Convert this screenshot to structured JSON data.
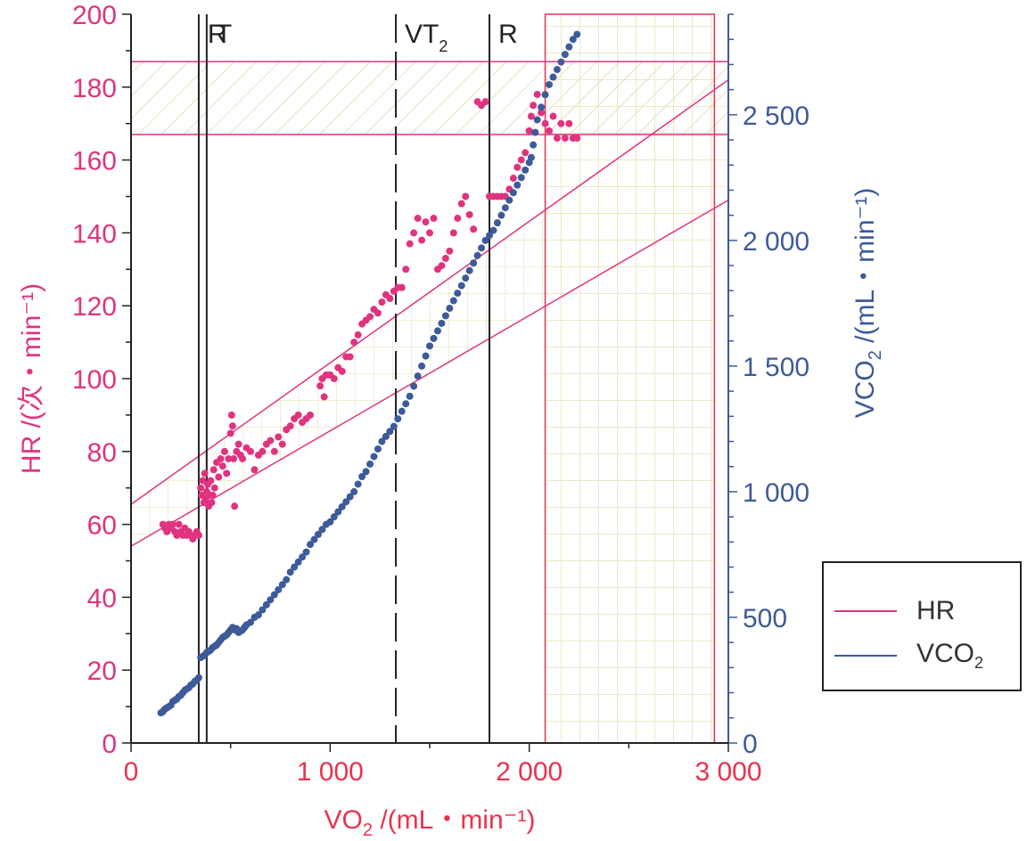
{
  "chart_data": {
    "type": "scatter",
    "xlabel": "VO",
    "xlabel_sub": "2",
    "xlabel_suffix": " /(mL・min⁻¹)",
    "ylabel_left": "HR /(次・min⁻¹)",
    "ylabel_right": "VCO",
    "ylabel_right_sub": "2",
    "ylabel_right_suffix": " /(mL・min⁻¹)",
    "xlim": [
      0,
      3000
    ],
    "ylim_left": [
      0,
      200
    ],
    "ylim_right": [
      0,
      2900
    ],
    "x_ticks": [
      "0",
      "1 000",
      "2 000",
      "3 000"
    ],
    "y_left_ticks": [
      "0",
      "20",
      "40",
      "60",
      "80",
      "100",
      "120",
      "140",
      "160",
      "180",
      "200"
    ],
    "y_right_ticks": [
      "0",
      "500",
      "1 000",
      "1 500",
      "2 000",
      "2 500"
    ],
    "threshold_lines": [
      {
        "label": "R",
        "sub": "",
        "x": 340,
        "style": "solid"
      },
      {
        "label": "T",
        "sub": "",
        "x": 380,
        "style": "solid"
      },
      {
        "label": "VT",
        "sub": "2",
        "x": 1330,
        "style": "dashed"
      },
      {
        "label": "R",
        "sub": "",
        "x": 1800,
        "style": "solid"
      }
    ],
    "hr_band": {
      "y_low": 167,
      "y_high": 187
    },
    "vo2_band": {
      "x_low": 2080,
      "x_high": 2930
    },
    "hr_regression_lines": [
      {
        "p1": [
          0,
          65.5
        ],
        "p2": [
          3000,
          182
        ]
      },
      {
        "p1": [
          0,
          54
        ],
        "p2": [
          3000,
          149
        ]
      }
    ],
    "series": [
      {
        "name": "HR",
        "color": "#e0337f",
        "axis": "left",
        "points": [
          [
            160,
            60
          ],
          [
            170,
            59
          ],
          [
            180,
            58
          ],
          [
            190,
            60
          ],
          [
            200,
            59
          ],
          [
            210,
            60
          ],
          [
            220,
            58
          ],
          [
            230,
            57
          ],
          [
            240,
            60
          ],
          [
            250,
            58
          ],
          [
            260,
            57
          ],
          [
            270,
            59
          ],
          [
            280,
            57
          ],
          [
            290,
            58
          ],
          [
            300,
            57
          ],
          [
            310,
            56
          ],
          [
            320,
            57
          ],
          [
            330,
            58
          ],
          [
            340,
            57
          ],
          [
            350,
            70
          ],
          [
            355,
            68
          ],
          [
            360,
            72
          ],
          [
            365,
            66
          ],
          [
            370,
            74
          ],
          [
            375,
            67
          ],
          [
            380,
            69
          ],
          [
            385,
            71
          ],
          [
            390,
            65
          ],
          [
            395,
            68
          ],
          [
            400,
            72
          ],
          [
            405,
            66
          ],
          [
            410,
            68
          ],
          [
            415,
            75
          ],
          [
            420,
            70
          ],
          [
            430,
            77
          ],
          [
            440,
            73
          ],
          [
            450,
            78
          ],
          [
            460,
            76
          ],
          [
            470,
            80
          ],
          [
            480,
            74
          ],
          [
            490,
            78
          ],
          [
            500,
            85
          ],
          [
            505,
            90
          ],
          [
            510,
            87
          ],
          [
            515,
            78
          ],
          [
            520,
            65
          ],
          [
            530,
            80
          ],
          [
            540,
            82
          ],
          [
            550,
            79
          ],
          [
            560,
            78
          ],
          [
            580,
            81
          ],
          [
            600,
            80
          ],
          [
            620,
            75
          ],
          [
            640,
            79
          ],
          [
            660,
            80
          ],
          [
            680,
            82
          ],
          [
            700,
            83
          ],
          [
            720,
            80
          ],
          [
            740,
            84
          ],
          [
            760,
            82
          ],
          [
            780,
            86
          ],
          [
            800,
            87
          ],
          [
            820,
            89
          ],
          [
            840,
            90
          ],
          [
            860,
            88
          ],
          [
            880,
            89
          ],
          [
            900,
            90
          ],
          [
            950,
            98
          ],
          [
            960,
            100
          ],
          [
            970,
            95
          ],
          [
            980,
            101
          ],
          [
            1000,
            101
          ],
          [
            1020,
            100
          ],
          [
            1040,
            103
          ],
          [
            1060,
            102
          ],
          [
            1080,
            106
          ],
          [
            1100,
            106
          ],
          [
            1120,
            110
          ],
          [
            1140,
            112
          ],
          [
            1160,
            115
          ],
          [
            1180,
            116
          ],
          [
            1200,
            117
          ],
          [
            1220,
            119
          ],
          [
            1240,
            118
          ],
          [
            1260,
            121
          ],
          [
            1280,
            123
          ],
          [
            1300,
            122
          ],
          [
            1320,
            124
          ],
          [
            1340,
            125
          ],
          [
            1360,
            125
          ],
          [
            1380,
            130
          ],
          [
            1400,
            137
          ],
          [
            1420,
            140
          ],
          [
            1440,
            144
          ],
          [
            1460,
            138
          ],
          [
            1480,
            143
          ],
          [
            1500,
            140
          ],
          [
            1520,
            144
          ],
          [
            1540,
            130
          ],
          [
            1560,
            131
          ],
          [
            1580,
            133
          ],
          [
            1600,
            135
          ],
          [
            1620,
            140
          ],
          [
            1640,
            144
          ],
          [
            1660,
            148
          ],
          [
            1680,
            150
          ],
          [
            1700,
            145
          ],
          [
            1720,
            141
          ],
          [
            1740,
            176
          ],
          [
            1760,
            175
          ],
          [
            1780,
            176
          ],
          [
            1800,
            150
          ],
          [
            1820,
            150
          ],
          [
            1840,
            150
          ],
          [
            1860,
            150
          ],
          [
            1880,
            150
          ],
          [
            1900,
            152
          ],
          [
            1920,
            155
          ],
          [
            1940,
            158
          ],
          [
            1960,
            160
          ],
          [
            1980,
            162
          ],
          [
            2000,
            168
          ],
          [
            2010,
            172
          ],
          [
            2020,
            175
          ],
          [
            2040,
            178
          ],
          [
            2060,
            173
          ],
          [
            2080,
            170
          ],
          [
            2100,
            168
          ],
          [
            2120,
            172
          ],
          [
            2140,
            166
          ],
          [
            2160,
            170
          ],
          [
            2180,
            166
          ],
          [
            2200,
            170
          ],
          [
            2220,
            166
          ],
          [
            2240,
            166
          ]
        ]
      },
      {
        "name": "VCO",
        "name_sub": "2",
        "color": "#3d5a99",
        "axis": "right",
        "points": [
          [
            150,
            120
          ],
          [
            160,
            125
          ],
          [
            170,
            135
          ],
          [
            180,
            140
          ],
          [
            190,
            145
          ],
          [
            200,
            150
          ],
          [
            210,
            165
          ],
          [
            220,
            170
          ],
          [
            230,
            175
          ],
          [
            240,
            185
          ],
          [
            250,
            190
          ],
          [
            260,
            200
          ],
          [
            270,
            210
          ],
          [
            280,
            215
          ],
          [
            290,
            220
          ],
          [
            300,
            230
          ],
          [
            310,
            235
          ],
          [
            320,
            245
          ],
          [
            330,
            250
          ],
          [
            340,
            260
          ],
          [
            350,
            340
          ],
          [
            360,
            345
          ],
          [
            370,
            350
          ],
          [
            380,
            360
          ],
          [
            390,
            365
          ],
          [
            400,
            370
          ],
          [
            410,
            380
          ],
          [
            420,
            385
          ],
          [
            430,
            390
          ],
          [
            440,
            400
          ],
          [
            450,
            410
          ],
          [
            460,
            420
          ],
          [
            470,
            425
          ],
          [
            480,
            430
          ],
          [
            490,
            440
          ],
          [
            500,
            450
          ],
          [
            510,
            460
          ],
          [
            520,
            450
          ],
          [
            530,
            455
          ],
          [
            540,
            440
          ],
          [
            550,
            445
          ],
          [
            560,
            450
          ],
          [
            570,
            460
          ],
          [
            580,
            470
          ],
          [
            600,
            480
          ],
          [
            620,
            500
          ],
          [
            640,
            510
          ],
          [
            660,
            530
          ],
          [
            680,
            550
          ],
          [
            700,
            570
          ],
          [
            720,
            590
          ],
          [
            740,
            610
          ],
          [
            760,
            630
          ],
          [
            780,
            650
          ],
          [
            800,
            680
          ],
          [
            820,
            700
          ],
          [
            840,
            720
          ],
          [
            860,
            740
          ],
          [
            880,
            760
          ],
          [
            900,
            790
          ],
          [
            920,
            810
          ],
          [
            940,
            830
          ],
          [
            960,
            850
          ],
          [
            980,
            870
          ],
          [
            1000,
            880
          ],
          [
            1020,
            900
          ],
          [
            1040,
            920
          ],
          [
            1060,
            940
          ],
          [
            1080,
            960
          ],
          [
            1100,
            980
          ],
          [
            1120,
            1000
          ],
          [
            1140,
            1030
          ],
          [
            1160,
            1060
          ],
          [
            1180,
            1080
          ],
          [
            1200,
            1110
          ],
          [
            1220,
            1140
          ],
          [
            1240,
            1170
          ],
          [
            1260,
            1200
          ],
          [
            1280,
            1220
          ],
          [
            1300,
            1240
          ],
          [
            1320,
            1260
          ],
          [
            1340,
            1290
          ],
          [
            1360,
            1320
          ],
          [
            1380,
            1350
          ],
          [
            1400,
            1380
          ],
          [
            1420,
            1420
          ],
          [
            1440,
            1460
          ],
          [
            1460,
            1500
          ],
          [
            1480,
            1540
          ],
          [
            1500,
            1580
          ],
          [
            1520,
            1610
          ],
          [
            1540,
            1640
          ],
          [
            1560,
            1670
          ],
          [
            1580,
            1700
          ],
          [
            1600,
            1730
          ],
          [
            1620,
            1760
          ],
          [
            1640,
            1790
          ],
          [
            1660,
            1820
          ],
          [
            1680,
            1850
          ],
          [
            1700,
            1880
          ],
          [
            1720,
            1910
          ],
          [
            1740,
            1940
          ],
          [
            1760,
            1970
          ],
          [
            1780,
            2000
          ],
          [
            1800,
            2020
          ],
          [
            1820,
            2040
          ],
          [
            1840,
            2070
          ],
          [
            1860,
            2100
          ],
          [
            1880,
            2130
          ],
          [
            1900,
            2160
          ],
          [
            1920,
            2190
          ],
          [
            1940,
            2220
          ],
          [
            1960,
            2250
          ],
          [
            1980,
            2280
          ],
          [
            2000,
            2310
          ],
          [
            2010,
            2330
          ],
          [
            2020,
            2380
          ],
          [
            2030,
            2430
          ],
          [
            2040,
            2480
          ],
          [
            2060,
            2530
          ],
          [
            2080,
            2580
          ],
          [
            2100,
            2620
          ],
          [
            2120,
            2650
          ],
          [
            2140,
            2680
          ],
          [
            2160,
            2710
          ],
          [
            2180,
            2740
          ],
          [
            2200,
            2770
          ],
          [
            2220,
            2800
          ],
          [
            2240,
            2820
          ]
        ]
      }
    ],
    "legend_position": "bottom-right"
  }
}
